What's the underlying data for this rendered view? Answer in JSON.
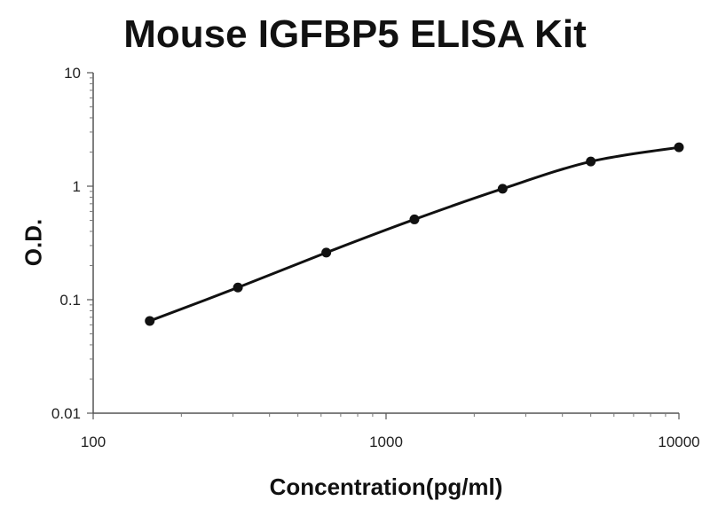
{
  "chart_data": {
    "type": "line",
    "title": "Mouse IGFBP5 ELISA Kit",
    "xlabel": "Concentration(pg/ml)",
    "ylabel": "O.D.",
    "xscale": "log",
    "yscale": "log",
    "xlim": [
      100,
      10000
    ],
    "ylim": [
      0.01,
      10
    ],
    "x_ticks": [
      "100",
      "1000",
      "10000"
    ],
    "y_ticks": [
      "0.01",
      "0.1",
      "1",
      "10"
    ],
    "grid": false,
    "legend": "none",
    "series": [
      {
        "x": [
          156,
          312,
          625,
          1250,
          2500,
          5000,
          10000
        ],
        "y": [
          0.065,
          0.128,
          0.26,
          0.51,
          0.95,
          1.65,
          2.2
        ],
        "color": "#111111"
      }
    ]
  }
}
